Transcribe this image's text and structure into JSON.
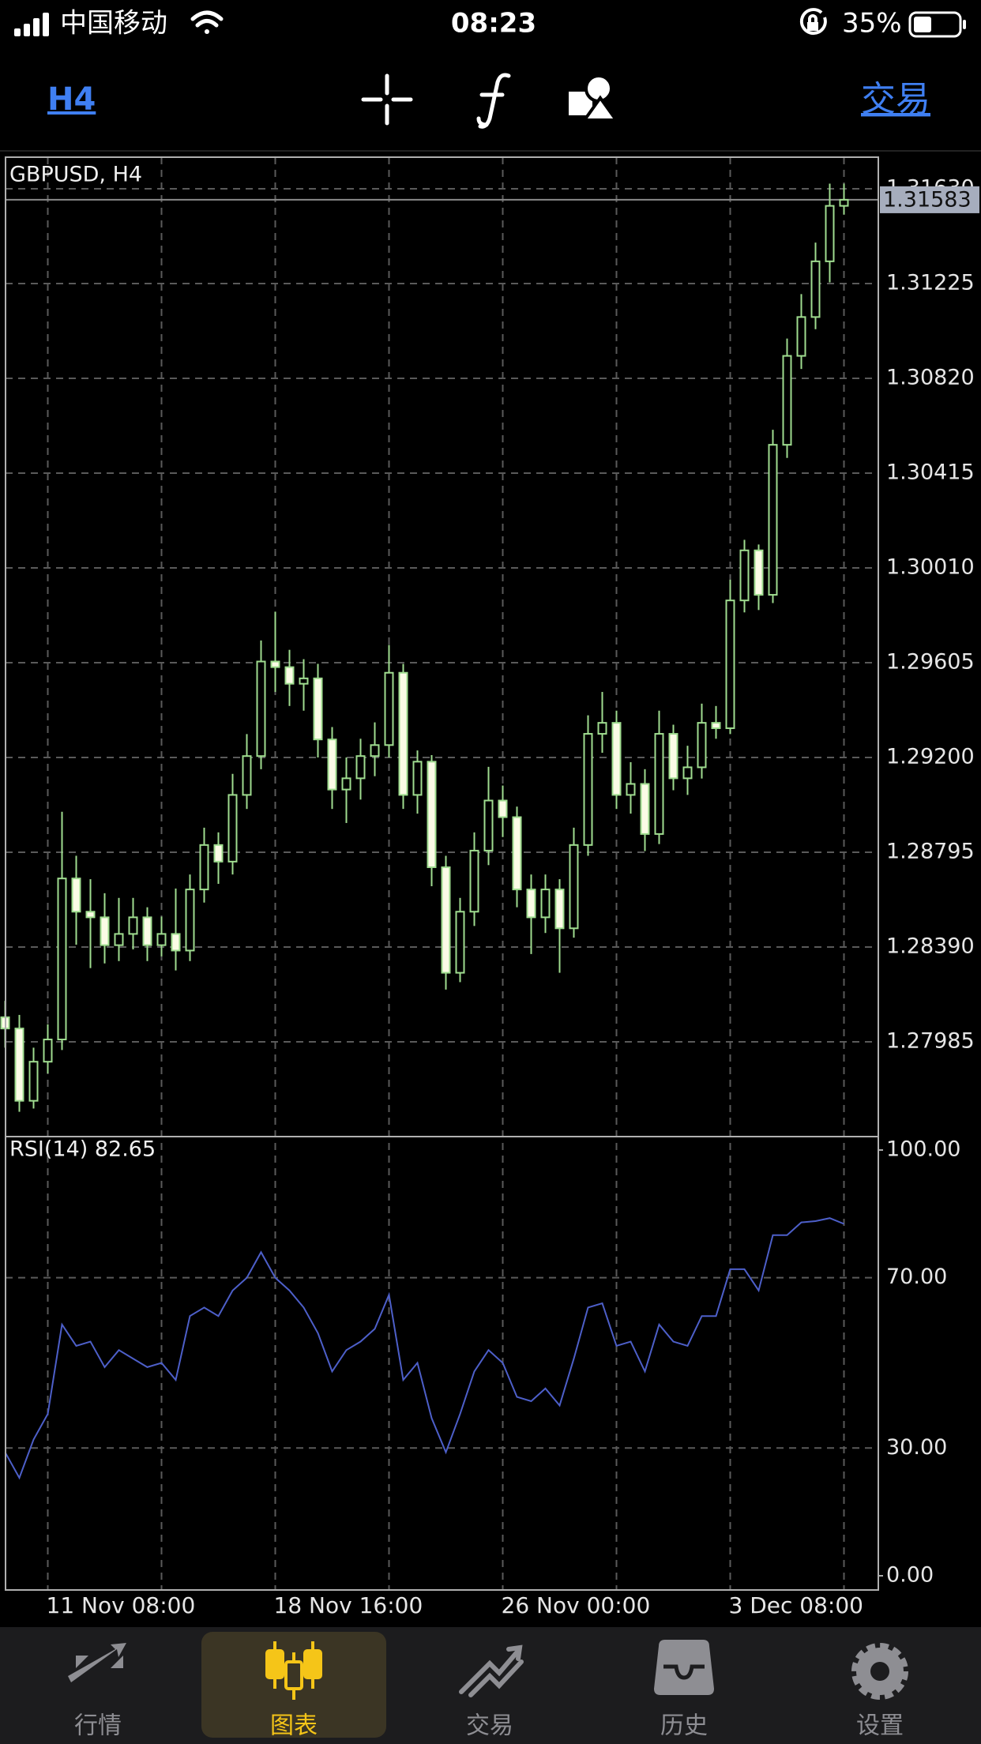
{
  "status_bar": {
    "carrier": "中国移动",
    "time": "08:23",
    "battery": "35%"
  },
  "toolbar": {
    "timeframe": "H4",
    "trade": "交易"
  },
  "chart_data": [
    {
      "type": "candlestick",
      "title": "GBPUSD, H4",
      "categories": [
        null,
        null,
        null,
        "11 Nov 08:00",
        null,
        null,
        null,
        null,
        null,
        null,
        null,
        null,
        null,
        null,
        null,
        null,
        null,
        null,
        null,
        "18 Nov 16:00",
        null,
        null,
        null,
        null,
        null,
        null,
        null,
        null,
        null,
        null,
        null,
        null,
        null,
        null,
        null,
        "26 Nov 00:00",
        null,
        null,
        null,
        null,
        null,
        null,
        null,
        null,
        null,
        null,
        null,
        null,
        null,
        null,
        null,
        "3 Dec 08:00",
        null,
        null,
        null,
        null,
        null,
        null,
        null,
        null
      ],
      "open": [
        1.2809,
        1.28042,
        1.27733,
        1.279,
        1.27995,
        1.28683,
        1.28541,
        1.28517,
        1.28398,
        1.28446,
        1.28517,
        1.28398,
        1.28446,
        1.28375,
        1.28636,
        1.28826,
        1.28755,
        1.2904,
        1.29206,
        1.2961,
        1.29586,
        1.29515,
        1.29538,
        1.29277,
        1.29063,
        1.29111,
        1.29206,
        1.29253,
        1.29562,
        1.2904,
        1.29182,
        1.28731,
        1.2828,
        1.28541,
        1.28802,
        1.29016,
        1.28945,
        1.28636,
        1.28517,
        1.28636,
        1.2847,
        1.28826,
        1.29301,
        1.29348,
        1.2904,
        1.29087,
        1.28873,
        1.29301,
        1.29111,
        1.29158,
        1.29348,
        1.29325,
        1.29871,
        1.30085,
        1.29895,
        1.30536,
        1.30916,
        1.31082,
        1.3132,
        1.31557
      ],
      "high": [
        1.2816,
        1.281,
        1.2796,
        1.2806,
        1.28968,
        1.2878,
        1.2868,
        1.2862,
        1.286,
        1.286,
        1.2856,
        1.2852,
        1.2864,
        1.287,
        1.289,
        1.2888,
        1.2913,
        1.293,
        1.297,
        1.29823,
        1.2966,
        1.2962,
        1.296,
        1.2933,
        1.292,
        1.2928,
        1.2935,
        1.29681,
        1.296,
        1.2923,
        1.2921,
        1.2878,
        1.286,
        1.2888,
        1.2916,
        1.2908,
        1.2899,
        1.287,
        1.287,
        1.2868,
        1.289,
        1.2938,
        1.2948,
        1.294,
        1.2918,
        1.2915,
        1.294,
        1.2934,
        1.2925,
        1.2943,
        1.2942,
        1.2996,
        1.3013,
        1.3011,
        1.306,
        1.3099,
        1.3118,
        1.314,
        1.31652,
        1.31652
      ],
      "low": [
        1.2796,
        1.27686,
        1.277,
        1.2785,
        1.2795,
        1.284,
        1.283,
        1.2832,
        1.2833,
        1.2838,
        1.2833,
        1.2835,
        1.2829,
        1.2833,
        1.2858,
        1.2866,
        1.287,
        1.2898,
        1.2915,
        1.2948,
        1.2942,
        1.294,
        1.292,
        1.2898,
        1.2892,
        1.2902,
        1.2912,
        1.292,
        1.2898,
        1.2896,
        1.2865,
        1.28208,
        1.2824,
        1.2848,
        1.2874,
        1.2886,
        1.2856,
        1.2836,
        1.2845,
        1.2828,
        1.2843,
        1.2878,
        1.2922,
        1.2898,
        1.2896,
        1.288,
        1.2883,
        1.2906,
        1.2904,
        1.2911,
        1.2928,
        1.293,
        1.2982,
        1.2983,
        1.2986,
        1.3048,
        1.3086,
        1.3103,
        1.3123,
        1.3152
      ],
      "close": [
        1.28042,
        1.27733,
        1.279,
        1.27995,
        1.28683,
        1.28541,
        1.28517,
        1.28398,
        1.28446,
        1.28517,
        1.28398,
        1.28446,
        1.28375,
        1.28636,
        1.28826,
        1.28755,
        1.2904,
        1.29206,
        1.2961,
        1.29586,
        1.29515,
        1.29538,
        1.29277,
        1.29063,
        1.29111,
        1.29206,
        1.29253,
        1.29562,
        1.2904,
        1.29182,
        1.28731,
        1.2828,
        1.28541,
        1.28802,
        1.29016,
        1.28945,
        1.28636,
        1.28517,
        1.28636,
        1.2847,
        1.28826,
        1.29301,
        1.29348,
        1.2904,
        1.29087,
        1.28873,
        1.29301,
        1.29111,
        1.29158,
        1.29348,
        1.29325,
        1.29871,
        1.30085,
        1.29895,
        1.30536,
        1.30916,
        1.31082,
        1.3132,
        1.31557,
        1.31583
      ],
      "ylim": [
        1.2758,
        1.31765
      ],
      "yticks": [
        1.27985,
        {
          "value": 1.2839,
          "label": "1.28390"
        },
        1.28795,
        {
          "value": 1.292,
          "label": "1.29200"
        },
        1.29605,
        {
          "value": 1.3001,
          "label": "1.30010"
        },
        1.30415,
        {
          "value": 1.3082,
          "label": "1.30820"
        },
        1.31225,
        {
          "value": 1.3163,
          "label": "1.31630"
        }
      ],
      "current_price": 1.31583,
      "grid": true,
      "bull_color": "#9fdc8f",
      "bear_color": "#fbfbe6"
    },
    {
      "type": "line",
      "title": "RSI(14) 82.65",
      "values": [
        29,
        23,
        32,
        38,
        59,
        54,
        55,
        49,
        53,
        51,
        49,
        50,
        46,
        61,
        63,
        61,
        67,
        70,
        76,
        70,
        67,
        63,
        57,
        48,
        53,
        55,
        58,
        66,
        46,
        50,
        37,
        29,
        38,
        48,
        53,
        50,
        42,
        41,
        44,
        40,
        51,
        63,
        64,
        54,
        55,
        48,
        59,
        55,
        54,
        61,
        61,
        72,
        72,
        67,
        80,
        80,
        83,
        83.3,
        84,
        82.65
      ],
      "color": "#4d5fc9",
      "ylim": [
        -3.34,
        103.15
      ],
      "yticks": [
        {
          "value": 0,
          "label": "0.00"
        },
        {
          "value": 30,
          "label": "30.00"
        },
        {
          "value": 70,
          "label": "70.00"
        },
        {
          "value": 100,
          "label": "100.00"
        }
      ],
      "grid": true
    }
  ],
  "tab_bar": {
    "items": [
      "行情",
      "图表",
      "交易",
      "历史",
      "设置"
    ],
    "active": 1
  }
}
